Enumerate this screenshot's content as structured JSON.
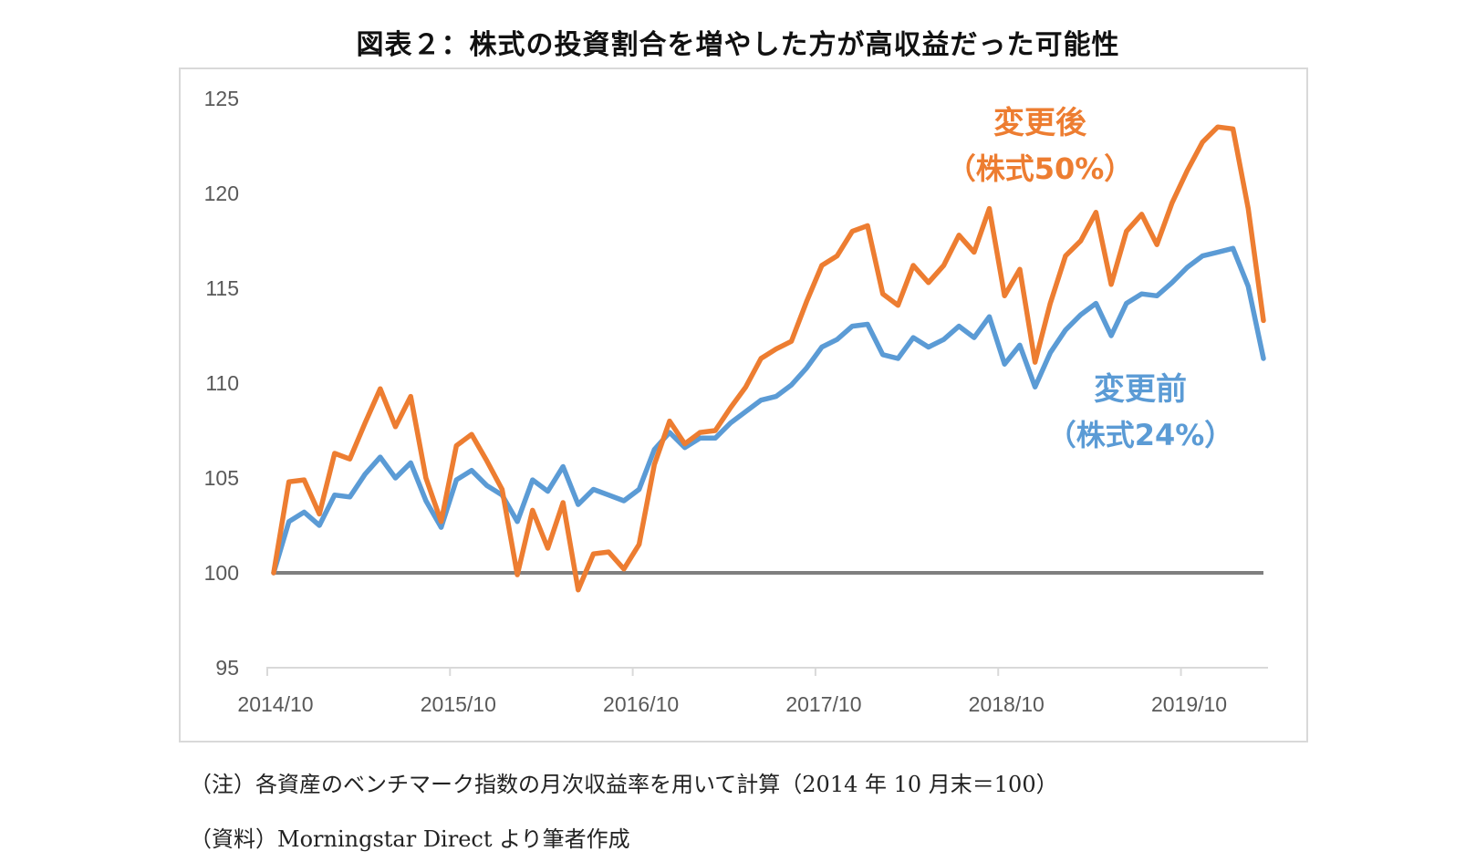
{
  "chart_data": {
    "type": "line",
    "title": "図表２：株式の投資割合を増やした方が高収益だった可能性",
    "xlabel": "",
    "ylabel": "",
    "ylim": [
      95,
      125
    ],
    "yticks": [
      "95",
      "100",
      "105",
      "110",
      "115",
      "120",
      "125"
    ],
    "xticks": [
      {
        "index": 0,
        "label": "2014/10"
      },
      {
        "index": 12,
        "label": "2015/10"
      },
      {
        "index": 24,
        "label": "2016/10"
      },
      {
        "index": 36,
        "label": "2017/10"
      },
      {
        "index": 48,
        "label": "2018/10"
      },
      {
        "index": 60,
        "label": "2019/10"
      }
    ],
    "baseline": 100,
    "series": [
      {
        "name": "変更後",
        "sublabel": "（株式50%）",
        "color": "#ed7d31",
        "values": [
          100,
          104.8,
          104.9,
          103.1,
          106.3,
          106.0,
          107.9,
          109.7,
          107.7,
          109.3,
          105.0,
          102.7,
          106.7,
          107.3,
          105.9,
          104.4,
          99.9,
          103.3,
          101.3,
          103.7,
          99.1,
          101.0,
          101.1,
          100.2,
          101.5,
          105.7,
          108.0,
          106.8,
          107.4,
          107.5,
          108.7,
          109.8,
          111.3,
          111.8,
          112.2,
          114.3,
          116.2,
          116.7,
          118.0,
          118.3,
          114.7,
          114.1,
          116.2,
          115.3,
          116.2,
          117.8,
          116.9,
          119.2,
          114.6,
          116.0,
          111.1,
          114.2,
          116.7,
          117.5,
          119.0,
          115.2,
          118.0,
          118.9,
          117.3,
          119.5,
          121.2,
          122.7,
          123.5,
          123.4,
          119.2,
          113.3
        ]
      },
      {
        "name": "変更前",
        "sublabel": "（株式24%）",
        "color": "#5b9bd5",
        "values": [
          100,
          102.7,
          103.2,
          102.5,
          104.1,
          104.0,
          105.2,
          106.1,
          105.0,
          105.8,
          103.8,
          102.4,
          104.9,
          105.4,
          104.6,
          104.1,
          102.7,
          104.9,
          104.3,
          105.6,
          103.6,
          104.4,
          104.1,
          103.8,
          104.4,
          106.5,
          107.4,
          106.6,
          107.1,
          107.1,
          107.9,
          108.5,
          109.1,
          109.3,
          109.9,
          110.8,
          111.9,
          112.3,
          113.0,
          113.1,
          111.5,
          111.3,
          112.4,
          111.9,
          112.3,
          113.0,
          112.4,
          113.5,
          111.0,
          112.0,
          109.8,
          111.6,
          112.8,
          113.6,
          114.2,
          112.5,
          114.2,
          114.7,
          114.6,
          115.3,
          116.1,
          116.7,
          116.9,
          117.1,
          115.1,
          111.3
        ]
      }
    ]
  },
  "notes": {
    "note1": "（注）各資産のベンチマーク指数の月次収益率を用いて計算（2014 年 10 月末＝100）",
    "note2": "（資料）Morningstar Direct より筆者作成"
  }
}
